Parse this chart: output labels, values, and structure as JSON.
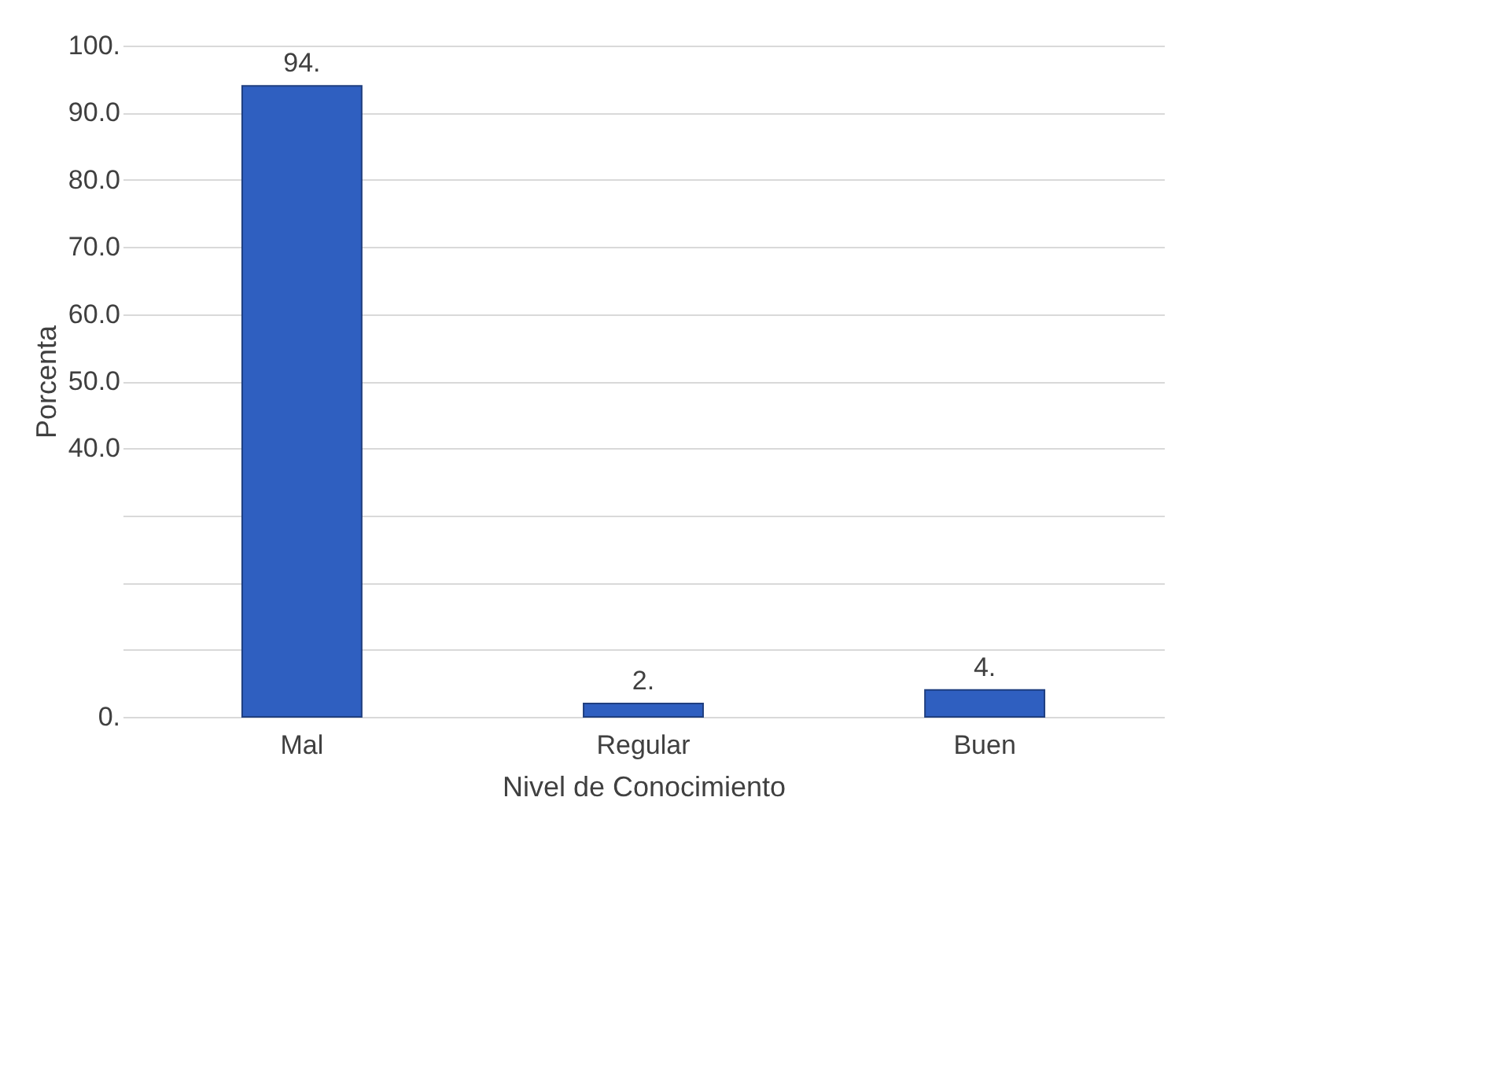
{
  "chart_data": {
    "type": "bar",
    "xlabel": "Nivel de Conocimiento",
    "ylabel": "Porcenta",
    "categories": [
      "Mal",
      "Regular",
      "Buen"
    ],
    "values": [
      94,
      2,
      4
    ],
    "color": "#2f5fc0",
    "value_labels": [
      "94.",
      "2.",
      "4."
    ],
    "ylim": [
      0,
      100
    ],
    "yticks": [
      {
        "value": 0,
        "label": "0."
      },
      {
        "value": 10,
        "label": null
      },
      {
        "value": 20,
        "label": null
      },
      {
        "value": 30,
        "label": null
      },
      {
        "value": 40,
        "label": "40.0"
      },
      {
        "value": 50,
        "label": "50.0"
      },
      {
        "value": 60,
        "label": "60.0"
      },
      {
        "value": 70,
        "label": "70.0"
      },
      {
        "value": 80,
        "label": "80.0"
      },
      {
        "value": 90,
        "label": "90.0"
      },
      {
        "value": 100,
        "label": "100."
      }
    ],
    "grid": "y"
  }
}
